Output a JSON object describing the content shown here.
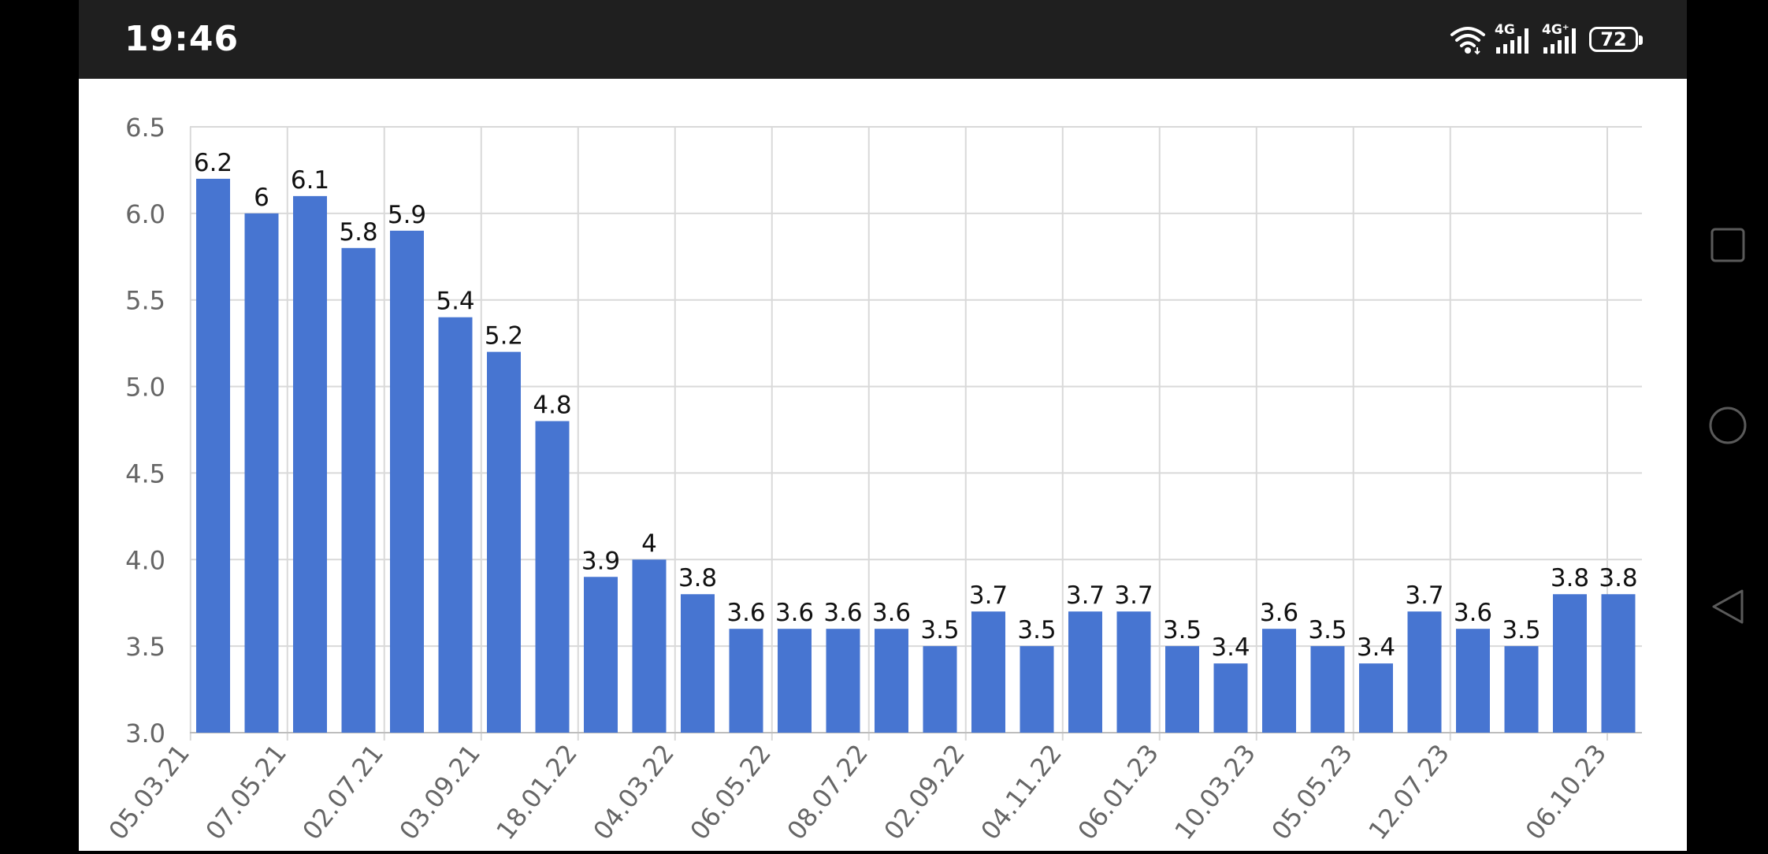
{
  "status_bar": {
    "time": "19:46",
    "network_1": "4G",
    "network_2": "4G⁺",
    "battery": "72"
  },
  "nav_bar": {
    "buttons": [
      "recents-square-icon",
      "home-circle-icon",
      "back-triangle-icon"
    ]
  },
  "colors": {
    "bar": "#4775d1",
    "status_bar_bg": "#1f1f1f",
    "chart_bg": "#ffffff",
    "grid": "#d9d9d9"
  },
  "chart_data": {
    "type": "bar",
    "title": "",
    "xlabel": "",
    "ylabel": "",
    "ylim": [
      3.0,
      6.5
    ],
    "yticks": [
      "3.0",
      "3.5",
      "4.0",
      "4.5",
      "5.0",
      "5.5",
      "6.0",
      "6.5"
    ],
    "grid": true,
    "values": [
      6.2,
      6,
      6.1,
      5.8,
      5.9,
      5.4,
      5.2,
      4.8,
      3.9,
      4,
      3.8,
      3.6,
      3.6,
      3.6,
      3.6,
      3.5,
      3.7,
      3.5,
      3.7,
      3.7,
      3.5,
      3.4,
      3.6,
      3.5,
      3.4,
      3.7,
      3.6,
      3.5,
      3.8,
      3.8
    ],
    "xtick_labels": [
      "05.03.21",
      "07.05.21",
      "02.07.21",
      "03.09.21",
      "18.01.22",
      "04.03.22",
      "06.05.22",
      "08.07.22",
      "02.09.22",
      "04.11.22",
      "06.01.23",
      "10.03.23",
      "05.05.23",
      "12.07.23",
      "06.10.23"
    ]
  }
}
